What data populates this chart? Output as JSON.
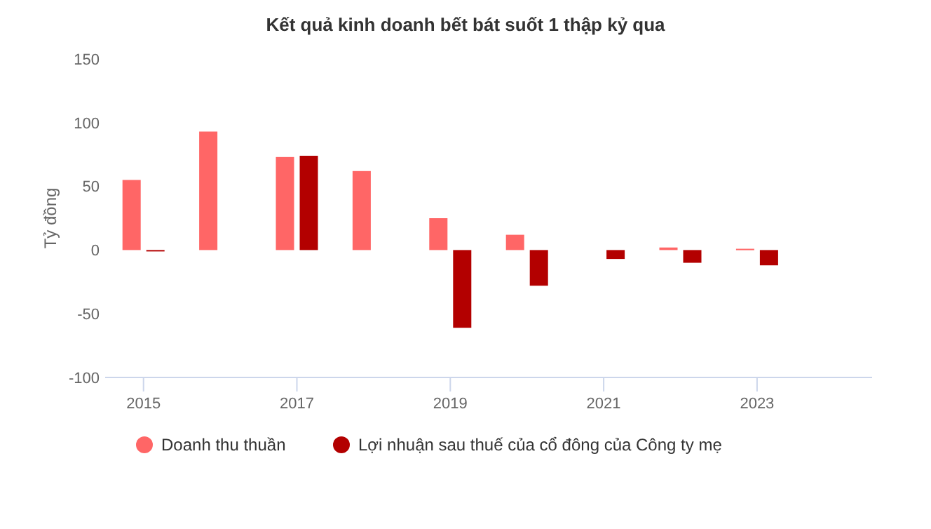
{
  "chart_data": {
    "type": "bar",
    "title": "Kết quả kinh doanh bết bát suốt 1 thập kỷ qua",
    "categories": [
      "2015",
      null,
      "2017",
      null,
      "2019",
      null,
      "2021",
      null,
      "2023",
      null
    ],
    "series": [
      {
        "name": "Doanh thu thuần",
        "color": "#ff6666",
        "values": [
          55,
          93,
          73,
          62,
          25,
          12,
          null,
          2,
          1,
          null
        ]
      },
      {
        "name": "Lợi nhuận sau thuế của cổ đông của Công ty mẹ",
        "color": "#b30000",
        "values": [
          -1,
          null,
          74,
          null,
          -61,
          -28,
          -7,
          -10,
          -12,
          null
        ]
      }
    ],
    "ylabel": "Tỷ đồng",
    "ylim": [
      -100,
      150
    ],
    "yticks": [
      -100,
      -50,
      0,
      50,
      100,
      150
    ],
    "grid": false,
    "legend": "bottom"
  }
}
